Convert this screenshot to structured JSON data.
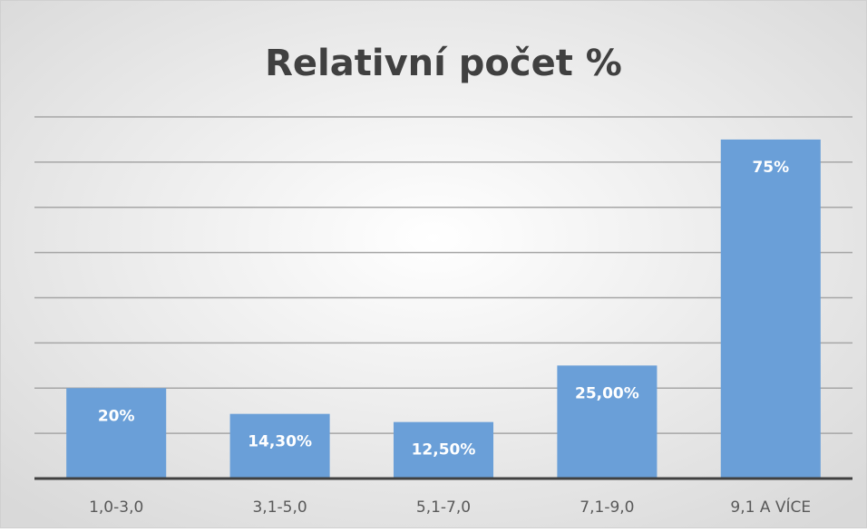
{
  "chart_data": {
    "type": "bar",
    "title": "Relativní počet %",
    "categories": [
      "1,0-3,0",
      "3,1-5,0",
      "5,1-7,0",
      "7,1-9,0",
      "9,1 A VÍCE"
    ],
    "values": [
      20,
      14.3,
      12.5,
      25,
      75
    ],
    "value_labels": [
      "20%",
      "14,30%",
      "12,50%",
      "25,00%",
      "75%"
    ],
    "color": "#6a9fd8",
    "ylim": [
      0,
      80
    ],
    "yticks": [
      0,
      10,
      20,
      30,
      40,
      50,
      60,
      70,
      80
    ],
    "grid": true
  }
}
